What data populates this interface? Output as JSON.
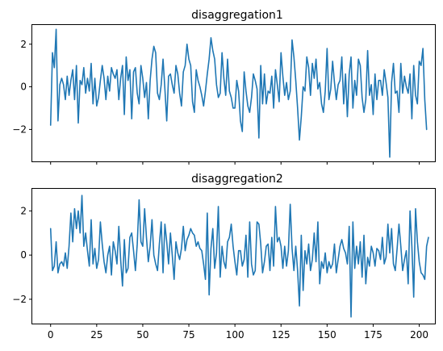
{
  "figure": {
    "background": "#ffffff",
    "line_color": "#1f77b4"
  },
  "chart_data": [
    {
      "type": "line",
      "title": "disaggregation1",
      "xlabel": "",
      "ylabel": "",
      "xlim": [
        -9.95,
        208.95
      ],
      "ylim": [
        -3.5,
        2.9
      ],
      "xticks": [
        0,
        25,
        50,
        75,
        100,
        125,
        150,
        175,
        200
      ],
      "xtick_labels_shown": false,
      "yticks": [
        -2,
        0,
        2
      ],
      "ytick_labels": [
        "−2",
        "0",
        "2"
      ],
      "grid": false,
      "series": [
        {
          "color": "#1f77b4",
          "x_start": 0,
          "x_step": 1,
          "values": [
            -1.8,
            1.6,
            0.9,
            2.7,
            -1.6,
            0.1,
            0.4,
            0.1,
            -0.6,
            0.5,
            -0.4,
            0.3,
            0.8,
            -0.6,
            1.0,
            -1.7,
            0.3,
            0.1,
            0.9,
            -0.3,
            0.4,
            -0.2,
            1.1,
            -0.8,
            0.4,
            -0.9,
            -0.5,
            0.3,
            1.0,
            0.4,
            -0.6,
            0.5,
            -0.2,
            0.9,
            0.6,
            0.4,
            0.8,
            -0.6,
            0.4,
            1.0,
            -1.3,
            1.4,
            0.3,
            0.8,
            -1.5,
            0.7,
            0.9,
            -0.3,
            -0.8,
            1.0,
            0.4,
            -0.5,
            0.2,
            -1.5,
            0.3,
            1.3,
            1.9,
            1.6,
            -0.3,
            -0.6,
            0.1,
            1.3,
            -0.1,
            -1.6,
            0.5,
            0.6,
            0.1,
            -0.3,
            1.0,
            0.6,
            -0.3,
            -0.9,
            0.7,
            1.0,
            2.0,
            1.3,
            1.0,
            -0.7,
            -1.2,
            0.8,
            0.3,
            0.0,
            -0.4,
            -0.9,
            -0.2,
            0.6,
            1.3,
            2.3,
            1.7,
            1.3,
            0.1,
            -0.5,
            -0.3,
            1.6,
            0.4,
            -0.4,
            1.3,
            -0.2,
            -0.5,
            -1.0,
            -1.0,
            0.3,
            -0.2,
            -1.6,
            -2.1,
            0.7,
            -0.2,
            -0.9,
            -1.2,
            -0.5,
            0.6,
            0.3,
            -0.1,
            -2.4,
            1.0,
            -0.8,
            0.6,
            -0.8,
            -0.2,
            -0.3,
            0.5,
            -1.0,
            0.8,
            0.1,
            -0.7,
            1.6,
            0.5,
            -0.4,
            0.2,
            -0.6,
            -0.2,
            2.2,
            1.4,
            0.3,
            -1.0,
            -2.5,
            -1.4,
            0.0,
            -0.2,
            1.4,
            0.9,
            -0.4,
            1.1,
            0.4,
            1.3,
            -0.1,
            0.2,
            -0.8,
            -1.2,
            -0.2,
            1.8,
            -0.6,
            -0.1,
            1.2,
            0.2,
            -0.6,
            0.1,
            0.3,
            1.4,
            -0.8,
            0.6,
            -1.4,
            0.6,
            1.4,
            -1.0,
            0.3,
            -0.4,
            1.3,
            1.0,
            -0.5,
            -1.2,
            -0.6,
            1.7,
            -0.4,
            0.1,
            -1.3,
            0.6,
            -0.6,
            0.3,
            0.3,
            -0.4,
            0.8,
            0.2,
            -0.5,
            -3.3,
            0.2,
            1.1,
            -0.3,
            -0.2,
            -1.2,
            1.1,
            -0.3,
            0.5,
            0.0,
            -0.3,
            0.6,
            -1.5,
            1.0,
            -0.4,
            -0.8,
            1.2,
            1.0,
            1.8,
            -0.6,
            -2.0
          ]
        }
      ]
    },
    {
      "type": "line",
      "title": "disaggregation2",
      "xlabel": "",
      "ylabel": "",
      "xlim": [
        -9.95,
        208.95
      ],
      "ylim": [
        -3.1,
        3.0
      ],
      "xticks": [
        0,
        25,
        50,
        75,
        100,
        125,
        150,
        175,
        200
      ],
      "xtick_labels_shown": true,
      "xtick_labels": [
        "0",
        "25",
        "50",
        "75",
        "100",
        "125",
        "150",
        "175",
        "200"
      ],
      "yticks": [
        -2,
        0,
        2
      ],
      "ytick_labels": [
        "−2",
        "0",
        "2"
      ],
      "grid": false,
      "series": [
        {
          "color": "#1f77b4",
          "x_start": 0,
          "x_step": 1,
          "values": [
            1.2,
            -0.7,
            -0.5,
            0.6,
            -0.8,
            -0.4,
            -0.3,
            -0.5,
            0.1,
            -0.6,
            0.4,
            1.9,
            0.6,
            2.1,
            1.2,
            2.0,
            1.0,
            2.7,
            0.4,
            1.0,
            0.2,
            -0.5,
            1.6,
            -0.4,
            0.3,
            -0.6,
            -0.2,
            1.5,
            0.5,
            -0.3,
            -0.8,
            0.0,
            0.4,
            -0.9,
            0.6,
            0.2,
            -0.4,
            1.3,
            -0.2,
            -1.4,
            0.7,
            -0.8,
            -0.6,
            0.8,
            1.0,
            0.2,
            -0.7,
            0.5,
            2.5,
            0.6,
            0.4,
            2.1,
            0.8,
            -0.3,
            0.4,
            1.6,
            0.0,
            -0.4,
            -0.7,
            0.5,
            1.5,
            -0.8,
            1.4,
            0.6,
            -0.4,
            1.0,
            0.0,
            -1.1,
            0.6,
            0.1,
            -0.2,
            0.3,
            1.3,
            0.2,
            0.7,
            0.9,
            1.2,
            1.0,
            0.9,
            0.4,
            0.6,
            0.3,
            0.2,
            -0.4,
            -1.1,
            1.9,
            -1.8,
            0.3,
            1.2,
            -0.6,
            0.1,
            2.2,
            -1.0,
            0.4,
            -0.3,
            -0.6,
            0.6,
            0.8,
            1.4,
            0.4,
            -0.3,
            -0.9,
            0.2,
            0.2,
            -0.5,
            -0.2,
            0.9,
            -1.0,
            1.5,
            -0.4,
            -0.9,
            -0.7,
            1.5,
            1.4,
            0.5,
            -0.8,
            -0.3,
            0.4,
            0.5,
            -0.7,
            0.8,
            -0.5,
            2.2,
            0.6,
            0.8,
            0.4,
            -0.6,
            0.4,
            -0.5,
            0.2,
            2.3,
            0.3,
            -0.7,
            0.4,
            -0.7,
            -2.3,
            0.9,
            -1.6,
            0.2,
            -0.4,
            0.5,
            -0.7,
            -0.2,
            1.0,
            -0.3,
            1.5,
            -1.3,
            -0.3,
            -0.6,
            0.1,
            -0.8,
            -0.3,
            -0.6,
            -0.4,
            0.5,
            -0.8,
            -0.2,
            0.4,
            0.7,
            0.3,
            0.1,
            -0.4,
            1.3,
            -2.8,
            1.5,
            -0.6,
            0.4,
            -0.4,
            0.6,
            -1.0,
            0.9,
            -1.3,
            -0.1,
            -0.5,
            0.4,
            0.1,
            -0.5,
            0.3,
            0.2,
            -0.2,
            0.8,
            -0.4,
            -0.1,
            1.4,
            0.1,
            1.2,
            -0.4,
            -0.7,
            0.3,
            1.4,
            0.4,
            -0.7,
            -0.2,
            0.2,
            -1.3,
            2.0,
            0.4,
            -1.9,
            2.1,
            0.6,
            -0.3,
            -0.8,
            -0.9,
            -1.1,
            0.4,
            0.8
          ]
        }
      ]
    }
  ]
}
